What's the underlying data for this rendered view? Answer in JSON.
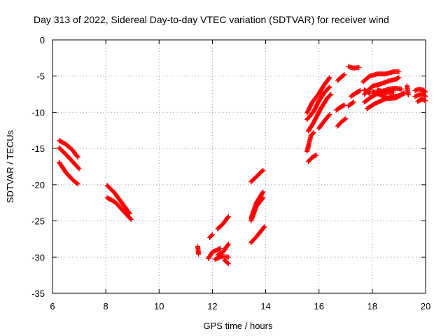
{
  "chart_data": {
    "type": "scatter",
    "title": "Day 313 of 2022, Sidereal Day-to-day VTEC variation (SDTVAR) for receiver wind",
    "xlabel": "GPS time / hours",
    "ylabel": "SDTVAR / TECUs",
    "xlim": [
      6,
      20
    ],
    "ylim": [
      -35,
      0
    ],
    "xticks": [
      "6",
      "8",
      "10",
      "12",
      "14",
      "16",
      "18",
      "20"
    ],
    "yticks": [
      "0",
      "-5",
      "-10",
      "-15",
      "-20",
      "-25",
      "-30",
      "-35"
    ],
    "grid": true,
    "marker": "plus",
    "color": "#ff0000",
    "tracks": [
      {
        "x": [
          6.25,
          6.5,
          6.75,
          6.95
        ],
        "y": [
          -13.9,
          -14.4,
          -15.2,
          -16.2
        ]
      },
      {
        "x": [
          6.25,
          6.5,
          6.75,
          7.0
        ],
        "y": [
          -14.9,
          -15.8,
          -16.8,
          -17.8
        ]
      },
      {
        "x": [
          6.25,
          6.5,
          6.75,
          6.95
        ],
        "y": [
          -16.9,
          -18.3,
          -19.3,
          -19.9
        ]
      },
      {
        "x": [
          8.05,
          8.3,
          8.6,
          8.9
        ],
        "y": [
          -20.1,
          -21.0,
          -22.5,
          -24.0
        ]
      },
      {
        "x": [
          8.05,
          8.35,
          8.65,
          8.95
        ],
        "y": [
          -21.8,
          -22.4,
          -23.6,
          -24.8
        ]
      },
      {
        "x": [
          11.45,
          11.48
        ],
        "y": [
          -28.5,
          -29.6
        ]
      },
      {
        "x": [
          11.9,
          12.0
        ],
        "y": [
          -27.3,
          -26.9
        ]
      },
      {
        "x": [
          11.85,
          12.0,
          12.3
        ],
        "y": [
          -30.2,
          -29.3,
          -28.8
        ]
      },
      {
        "x": [
          12.2,
          12.4,
          12.6
        ],
        "y": [
          -26.1,
          -25.4,
          -24.4
        ]
      },
      {
        "x": [
          12.2,
          12.4,
          12.6
        ],
        "y": [
          -29.7,
          -29.3,
          -28.2
        ]
      },
      {
        "x": [
          12.1,
          12.35,
          12.6
        ],
        "y": [
          -30.3,
          -29.9,
          -30.0
        ]
      },
      {
        "x": [
          12.45,
          12.6
        ],
        "y": [
          -30.4,
          -30.9
        ]
      },
      {
        "x": [
          13.45,
          13.65,
          13.9
        ],
        "y": [
          -19.6,
          -18.9,
          -18.0
        ]
      },
      {
        "x": [
          13.45,
          13.65,
          13.9
        ],
        "y": [
          -24.6,
          -22.5,
          -21.0
        ]
      },
      {
        "x": [
          13.45,
          13.65,
          13.9
        ],
        "y": [
          -25.0,
          -23.0,
          -21.8
        ]
      },
      {
        "x": [
          13.45,
          13.65,
          13.95
        ],
        "y": [
          -28.0,
          -27.2,
          -25.8
        ]
      },
      {
        "x": [
          15.55,
          15.75,
          16.0,
          16.2,
          16.4
        ],
        "y": [
          -10.1,
          -8.6,
          -7.4,
          -6.2,
          -5.2
        ]
      },
      {
        "x": [
          15.55,
          15.8,
          16.0,
          16.2,
          16.4
        ],
        "y": [
          -11.0,
          -9.9,
          -8.4,
          -7.3,
          -6.5
        ]
      },
      {
        "x": [
          15.6,
          15.8,
          16.05,
          16.3,
          16.45
        ],
        "y": [
          -12.6,
          -11.4,
          -9.6,
          -8.1,
          -7.5
        ]
      },
      {
        "x": [
          16.0,
          16.2,
          16.4
        ],
        "y": [
          -12.2,
          -11.2,
          -10.3
        ]
      },
      {
        "x": [
          15.55,
          15.7,
          15.8
        ],
        "y": [
          -15.4,
          -13.2,
          -12.8
        ]
      },
      {
        "x": [
          15.6,
          15.75,
          15.9
        ],
        "y": [
          -16.8,
          -16.2,
          -15.9
        ]
      },
      {
        "x": [
          16.65,
          16.8,
          16.95
        ],
        "y": [
          -9.7,
          -9.3,
          -9.0
        ]
      },
      {
        "x": [
          16.7,
          16.85,
          17.0
        ],
        "y": [
          -11.9,
          -11.3,
          -10.9
        ]
      },
      {
        "x": [
          16.7,
          16.85,
          16.95
        ],
        "y": [
          -5.6,
          -5.1,
          -4.8
        ]
      },
      {
        "x": [
          17.1,
          17.3,
          17.5
        ],
        "y": [
          -3.7,
          -3.9,
          -3.8
        ]
      },
      {
        "x": [
          17.1,
          17.3
        ],
        "y": [
          -9.1,
          -8.6
        ]
      },
      {
        "x": [
          17.2,
          17.4,
          17.55
        ],
        "y": [
          -7.8,
          -7.3,
          -7.0
        ]
      },
      {
        "x": [
          17.65,
          17.9,
          18.2,
          18.5,
          18.8,
          19.0
        ],
        "y": [
          -5.8,
          -5.0,
          -4.7,
          -4.7,
          -4.4,
          -4.4
        ]
      },
      {
        "x": [
          17.7,
          18.0,
          18.3,
          18.6,
          18.9,
          19.0
        ],
        "y": [
          -7.5,
          -6.4,
          -6.1,
          -5.7,
          -5.4,
          -5.2
        ]
      },
      {
        "x": [
          17.7,
          18.0,
          18.3,
          18.6,
          18.9,
          19.1
        ],
        "y": [
          -8.6,
          -7.8,
          -7.2,
          -6.8,
          -6.7,
          -6.8
        ]
      },
      {
        "x": [
          17.8,
          18.1,
          18.4,
          18.7,
          19.0,
          19.2
        ],
        "y": [
          -9.5,
          -8.8,
          -8.3,
          -7.9,
          -7.7,
          -7.4
        ]
      },
      {
        "x": [
          18.0,
          18.3,
          18.6,
          18.9,
          19.2
        ],
        "y": [
          -7.1,
          -7.6,
          -8.1,
          -8.0,
          -7.3
        ]
      },
      {
        "x": [
          18.2,
          18.5,
          18.8
        ],
        "y": [
          -6.9,
          -7.3,
          -7.2
        ]
      },
      {
        "x": [
          17.7,
          17.9
        ],
        "y": [
          -6.9,
          -7.4
        ]
      },
      {
        "x": [
          19.3,
          19.35
        ],
        "y": [
          -6.3,
          -7.6
        ]
      },
      {
        "x": [
          19.6,
          19.75,
          19.9,
          20.0
        ],
        "y": [
          -7.0,
          -6.8,
          -6.9,
          -7.2
        ]
      },
      {
        "x": [
          19.6,
          19.75,
          19.9,
          20.0
        ],
        "y": [
          -7.8,
          -7.6,
          -7.5,
          -7.8
        ]
      },
      {
        "x": [
          19.7,
          19.85,
          20.0
        ],
        "y": [
          -8.5,
          -8.2,
          -8.4
        ]
      }
    ]
  }
}
